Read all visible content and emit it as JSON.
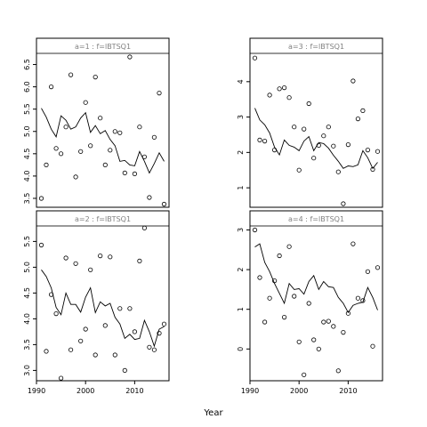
{
  "chart_data": {
    "type": "scatter",
    "xlabel": "Year",
    "xlim": [
      1990,
      2017
    ],
    "xticks": [
      1990,
      2000,
      2010
    ],
    "grid": false,
    "panels": [
      {
        "title": "a=1  :  f=lBTSQ1",
        "ylim": [
          3.3,
          6.75
        ],
        "yticks": [
          3.5,
          4.0,
          4.5,
          5.0,
          5.5,
          6.0,
          6.5
        ],
        "ytick_labels": [
          "3.5",
          "4.0",
          "4.5",
          "5.0",
          "5.5",
          "6.0",
          "6.5"
        ],
        "points": [
          [
            1991,
            3.5
          ],
          [
            1992,
            4.25
          ],
          [
            1993,
            6.0
          ],
          [
            1994,
            4.62
          ],
          [
            1995,
            4.5
          ],
          [
            1996,
            5.1
          ],
          [
            1997,
            6.27
          ],
          [
            1998,
            3.98
          ],
          [
            1999,
            4.55
          ],
          [
            2000,
            5.65
          ],
          [
            2001,
            4.68
          ],
          [
            2002,
            6.22
          ],
          [
            2003,
            5.3
          ],
          [
            2004,
            4.25
          ],
          [
            2005,
            4.58
          ],
          [
            2006,
            5.0
          ],
          [
            2007,
            4.97
          ],
          [
            2008,
            4.07
          ],
          [
            2009,
            6.67
          ],
          [
            2010,
            4.05
          ],
          [
            2011,
            5.1
          ],
          [
            2012,
            4.43
          ],
          [
            2013,
            3.52
          ],
          [
            2014,
            4.87
          ],
          [
            2015,
            5.86
          ],
          [
            2016,
            3.37
          ]
        ],
        "line": [
          [
            1991,
            5.52
          ],
          [
            1992,
            5.32
          ],
          [
            1993,
            5.05
          ],
          [
            1994,
            4.88
          ],
          [
            1995,
            5.35
          ],
          [
            1996,
            5.25
          ],
          [
            1997,
            5.05
          ],
          [
            1998,
            5.1
          ],
          [
            1999,
            5.3
          ],
          [
            2000,
            5.42
          ],
          [
            2001,
            4.98
          ],
          [
            2002,
            5.13
          ],
          [
            2003,
            4.95
          ],
          [
            2004,
            5.02
          ],
          [
            2005,
            4.82
          ],
          [
            2006,
            4.68
          ],
          [
            2007,
            4.33
          ],
          [
            2008,
            4.35
          ],
          [
            2009,
            4.25
          ],
          [
            2010,
            4.23
          ],
          [
            2011,
            4.55
          ],
          [
            2012,
            4.33
          ],
          [
            2013,
            4.07
          ],
          [
            2014,
            4.28
          ],
          [
            2015,
            4.52
          ],
          [
            2016,
            4.33
          ]
        ]
      },
      {
        "title": "a=3  :  f=lBTSQ1",
        "ylim": [
          0.45,
          4.8
        ],
        "yticks": [
          1,
          2,
          3,
          4
        ],
        "ytick_labels": [
          "1",
          "2",
          "3",
          "4"
        ],
        "points": [
          [
            1991,
            4.67
          ],
          [
            1992,
            2.35
          ],
          [
            1993,
            2.32
          ],
          [
            1994,
            3.62
          ],
          [
            1995,
            2.07
          ],
          [
            1996,
            3.8
          ],
          [
            1997,
            3.83
          ],
          [
            1998,
            3.55
          ],
          [
            1999,
            2.72
          ],
          [
            2000,
            1.5
          ],
          [
            2001,
            2.66
          ],
          [
            2002,
            3.38
          ],
          [
            2003,
            1.84
          ],
          [
            2004,
            2.2
          ],
          [
            2005,
            2.47
          ],
          [
            2006,
            2.72
          ],
          [
            2007,
            2.18
          ],
          [
            2008,
            1.45
          ],
          [
            2009,
            0.55
          ],
          [
            2010,
            2.22
          ],
          [
            2011,
            4.02
          ],
          [
            2012,
            2.95
          ],
          [
            2013,
            3.18
          ],
          [
            2014,
            2.07
          ],
          [
            2015,
            1.52
          ],
          [
            2016,
            2.03
          ]
        ],
        "line": [
          [
            1991,
            3.25
          ],
          [
            1992,
            2.92
          ],
          [
            1993,
            2.78
          ],
          [
            1994,
            2.55
          ],
          [
            1995,
            2.15
          ],
          [
            1996,
            1.93
          ],
          [
            1997,
            2.35
          ],
          [
            1998,
            2.2
          ],
          [
            1999,
            2.15
          ],
          [
            2000,
            2.05
          ],
          [
            2001,
            2.32
          ],
          [
            2002,
            2.45
          ],
          [
            2003,
            2.05
          ],
          [
            2004,
            2.28
          ],
          [
            2005,
            2.25
          ],
          [
            2006,
            2.12
          ],
          [
            2007,
            1.92
          ],
          [
            2008,
            1.75
          ],
          [
            2009,
            1.55
          ],
          [
            2010,
            1.62
          ],
          [
            2011,
            1.6
          ],
          [
            2012,
            1.65
          ],
          [
            2013,
            2.05
          ],
          [
            2014,
            1.85
          ],
          [
            2015,
            1.55
          ],
          [
            2016,
            1.72
          ]
        ]
      },
      {
        "title": "a=2  :  f=lBTSQ1",
        "ylim": [
          2.8,
          5.8
        ],
        "yticks": [
          3.0,
          3.5,
          4.0,
          4.5,
          5.0,
          5.5
        ],
        "ytick_labels": [
          "3.0",
          "3.5",
          "4.0",
          "4.5",
          "5.0",
          "5.5"
        ],
        "points": [
          [
            1991,
            5.43
          ],
          [
            1992,
            3.37
          ],
          [
            1993,
            4.47
          ],
          [
            1994,
            4.1
          ],
          [
            1995,
            2.85
          ],
          [
            1996,
            5.18
          ],
          [
            1997,
            3.4
          ],
          [
            1998,
            5.07
          ],
          [
            1999,
            3.57
          ],
          [
            2000,
            3.8
          ],
          [
            2001,
            4.95
          ],
          [
            2002,
            3.3
          ],
          [
            2003,
            5.22
          ],
          [
            2004,
            3.87
          ],
          [
            2005,
            5.2
          ],
          [
            2006,
            3.3
          ],
          [
            2007,
            4.2
          ],
          [
            2008,
            3.0
          ],
          [
            2009,
            4.2
          ],
          [
            2010,
            3.75
          ],
          [
            2011,
            5.12
          ],
          [
            2012,
            5.76
          ],
          [
            2013,
            3.45
          ],
          [
            2014,
            3.4
          ],
          [
            2015,
            3.72
          ],
          [
            2016,
            3.9
          ]
        ],
        "line": [
          [
            1991,
            4.95
          ],
          [
            1992,
            4.82
          ],
          [
            1993,
            4.6
          ],
          [
            1994,
            4.22
          ],
          [
            1995,
            4.08
          ],
          [
            1996,
            4.5
          ],
          [
            1997,
            4.28
          ],
          [
            1998,
            4.28
          ],
          [
            1999,
            4.13
          ],
          [
            2000,
            4.42
          ],
          [
            2001,
            4.6
          ],
          [
            2002,
            4.12
          ],
          [
            2003,
            4.33
          ],
          [
            2004,
            4.25
          ],
          [
            2005,
            4.3
          ],
          [
            2006,
            4.03
          ],
          [
            2007,
            3.9
          ],
          [
            2008,
            3.62
          ],
          [
            2009,
            3.7
          ],
          [
            2010,
            3.6
          ],
          [
            2011,
            3.62
          ],
          [
            2012,
            3.97
          ],
          [
            2013,
            3.75
          ],
          [
            2014,
            3.47
          ],
          [
            2015,
            3.8
          ],
          [
            2016,
            3.85
          ]
        ]
      },
      {
        "title": "a=4  :  f=lBTSQ1",
        "ylim": [
          -0.8,
          3.1
        ],
        "yticks": [
          0,
          1,
          2,
          3
        ],
        "ytick_labels": [
          "0",
          "1",
          "2",
          "3"
        ],
        "points": [
          [
            1991,
            3.0
          ],
          [
            1992,
            1.8
          ],
          [
            1993,
            0.68
          ],
          [
            1994,
            1.28
          ],
          [
            1995,
            1.72
          ],
          [
            1996,
            2.35
          ],
          [
            1997,
            0.8
          ],
          [
            1998,
            2.58
          ],
          [
            1999,
            1.33
          ],
          [
            2000,
            0.18
          ],
          [
            2001,
            -0.65
          ],
          [
            2002,
            1.15
          ],
          [
            2003,
            0.23
          ],
          [
            2004,
            0.0
          ],
          [
            2005,
            0.68
          ],
          [
            2006,
            0.7
          ],
          [
            2007,
            0.57
          ],
          [
            2008,
            -0.55
          ],
          [
            2009,
            0.42
          ],
          [
            2010,
            0.9
          ],
          [
            2011,
            2.65
          ],
          [
            2012,
            1.28
          ],
          [
            2013,
            1.22
          ],
          [
            2014,
            1.95
          ],
          [
            2015,
            0.07
          ],
          [
            2016,
            2.05
          ]
        ],
        "line": [
          [
            1991,
            2.57
          ],
          [
            1992,
            2.65
          ],
          [
            1993,
            2.18
          ],
          [
            1994,
            1.95
          ],
          [
            1995,
            1.65
          ],
          [
            1996,
            1.4
          ],
          [
            1997,
            1.15
          ],
          [
            1998,
            1.65
          ],
          [
            1999,
            1.5
          ],
          [
            2000,
            1.52
          ],
          [
            2001,
            1.38
          ],
          [
            2002,
            1.7
          ],
          [
            2003,
            1.85
          ],
          [
            2004,
            1.5
          ],
          [
            2005,
            1.7
          ],
          [
            2006,
            1.57
          ],
          [
            2007,
            1.55
          ],
          [
            2008,
            1.3
          ],
          [
            2009,
            1.15
          ],
          [
            2010,
            0.92
          ],
          [
            2011,
            1.1
          ],
          [
            2012,
            1.15
          ],
          [
            2013,
            1.18
          ],
          [
            2014,
            1.55
          ],
          [
            2015,
            1.3
          ],
          [
            2016,
            0.98
          ]
        ]
      }
    ]
  }
}
